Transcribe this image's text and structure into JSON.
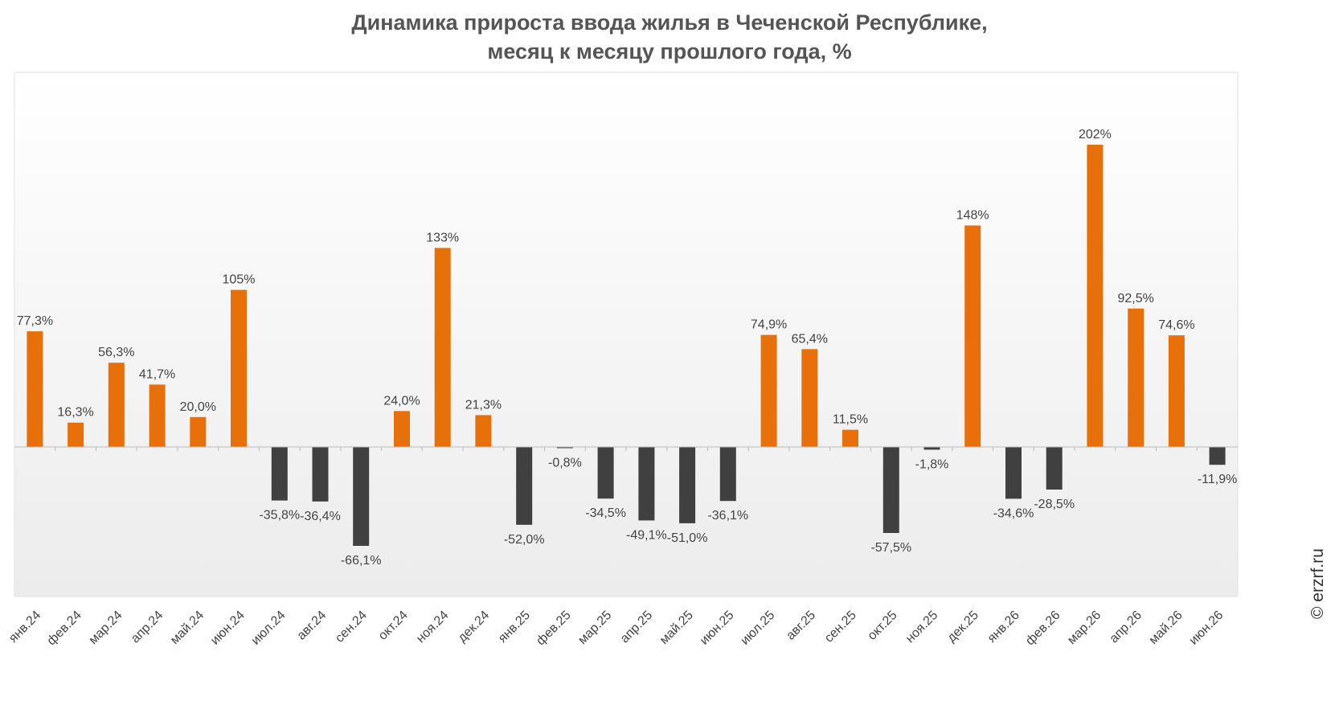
{
  "title": {
    "line1": "Динамика прироста ввода жилья в Чеченской Республике,",
    "line2": "месяц к месяцу прошлого года, %"
  },
  "watermark": "© erzrf.ru",
  "colors": {
    "positive": "#e8700a",
    "negative": "#404040",
    "axis": "#bbbbbb",
    "label": "#444444"
  },
  "chart_data": {
    "type": "bar",
    "title": "Динамика прироста ввода жилья в Чеченской Республике, месяц к месяцу прошлого года, %",
    "xlabel": "",
    "ylabel": "",
    "ylim": [
      -100,
      250
    ],
    "grid": false,
    "legend": "none",
    "categories": [
      "янв.24",
      "фев.24",
      "мар.24",
      "апр.24",
      "май.24",
      "июн.24",
      "июл.24",
      "авг.24",
      "сен.24",
      "окт.24",
      "ноя.24",
      "дек.24",
      "янв.25",
      "фев.25",
      "мар.25",
      "апр.25",
      "май.25",
      "июн.25",
      "июл.25",
      "авг.25",
      "сен.25",
      "окт.25",
      "ноя.25",
      "дек.25",
      "янв.26",
      "фев.26",
      "мар.26",
      "апр.26",
      "май.26",
      "июн.26"
    ],
    "values": [
      77.3,
      16.3,
      56.3,
      41.7,
      20.0,
      105,
      -35.8,
      -36.4,
      -66.1,
      24.0,
      133,
      21.3,
      -52.0,
      -0.8,
      -34.5,
      -49.1,
      -51.0,
      -36.1,
      74.9,
      65.4,
      11.5,
      -57.5,
      -1.8,
      148,
      -34.6,
      -28.5,
      202,
      92.5,
      74.6,
      -11.9
    ],
    "labels": [
      "77,3%",
      "16,3%",
      "56,3%",
      "41,7%",
      "20,0%",
      "105%",
      "-35,8%",
      "-36,4%",
      "-66,1%",
      "24,0%",
      "133%",
      "21,3%",
      "-52,0%",
      "-0,8%",
      "-34,5%",
      "-49,1%",
      "-51,0%",
      "-36,1%",
      "74,9%",
      "65,4%",
      "11,5%",
      "-57,5%",
      "-1,8%",
      "148%",
      "-34,6%",
      "-28,5%",
      "202%",
      "92,5%",
      "74,6%",
      "-11,9%"
    ]
  }
}
